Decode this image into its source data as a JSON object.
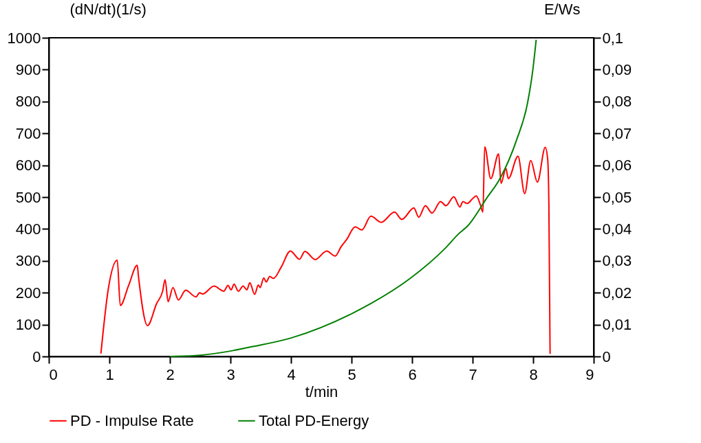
{
  "chart_data": {
    "type": "line",
    "xlabel": "t/min",
    "ylabel": "(dN/dt)(1/s)",
    "y2label": "E/Ws",
    "xlim": [
      0,
      9
    ],
    "xticks": [
      0,
      1,
      2,
      3,
      4,
      5,
      6,
      7,
      8,
      9
    ],
    "ylim": [
      0,
      1000
    ],
    "yticks": [
      0,
      100,
      200,
      300,
      400,
      500,
      600,
      700,
      800,
      900,
      1000
    ],
    "y2lim": [
      0,
      0.1
    ],
    "y2ticks": [
      {
        "value": 0,
        "label": "0"
      },
      {
        "value": 0.01,
        "label": "0,01"
      },
      {
        "value": 0.02,
        "label": "0,02"
      },
      {
        "value": 0.03,
        "label": "0,03"
      },
      {
        "value": 0.04,
        "label": "0,04"
      },
      {
        "value": 0.05,
        "label": "0,05"
      },
      {
        "value": 0.06,
        "label": "0,06"
      },
      {
        "value": 0.07,
        "label": "0,07"
      },
      {
        "value": 0.08,
        "label": "0,08"
      },
      {
        "value": 0.09,
        "label": "0,09"
      },
      {
        "value": 0.1,
        "label": "0,1"
      }
    ],
    "grid": false,
    "legend": "bottom",
    "marker": "none",
    "line_style": "solid",
    "series": [
      {
        "name": "PD - Impulse Rate",
        "color": "#ff0000",
        "x": [
          0.86,
          0.98,
          1.13,
          1.18,
          1.32,
          1.46,
          1.48,
          1.63,
          1.78,
          1.88,
          1.92,
          1.97,
          2.05,
          2.14,
          2.26,
          2.43,
          2.49,
          2.54,
          2.73,
          2.89,
          2.96,
          3.01,
          3.06,
          3.13,
          3.21,
          3.27,
          3.32,
          3.4,
          3.46,
          3.49,
          3.55,
          3.59,
          3.65,
          3.71,
          3.84,
          3.99,
          4.14,
          4.23,
          4.4,
          4.59,
          4.73,
          4.83,
          4.92,
          5.06,
          5.17,
          5.32,
          5.49,
          5.71,
          5.83,
          6.03,
          6.11,
          6.22,
          6.33,
          6.47,
          6.56,
          6.69,
          6.79,
          6.84,
          6.91,
          7.0,
          7.06,
          7.13,
          7.17,
          7.2,
          7.3,
          7.43,
          7.47,
          7.55,
          7.59,
          7.75,
          7.86,
          7.96,
          8.07,
          8.2,
          8.24,
          8.26,
          8.28
        ],
        "values": [
          9,
          209,
          302,
          160,
          224,
          286,
          252,
          97,
          166,
          205,
          241,
          172,
          216,
          177,
          208,
          187,
          200,
          196,
          221,
          205,
          223,
          209,
          227,
          205,
          221,
          209,
          231,
          195,
          224,
          216,
          246,
          234,
          251,
          245,
          281,
          331,
          305,
          330,
          304,
          331,
          315,
          345,
          367,
          407,
          397,
          440,
          421,
          453,
          430,
          466,
          437,
          473,
          450,
          486,
          473,
          501,
          469,
          486,
          480,
          495,
          504,
          475,
          453,
          658,
          558,
          636,
          543,
          590,
          558,
          628,
          511,
          615,
          547,
          656,
          619,
          475,
          8
        ]
      },
      {
        "name": "Total PD-Energy",
        "color": "#008000",
        "axis": "y2",
        "x": [
          2.0,
          2.5,
          3.0,
          3.34,
          4.0,
          5.0,
          5.32,
          5.97,
          6.54,
          6.77,
          6.92,
          7.23,
          7.46,
          7.72,
          7.91,
          7.99,
          8.05
        ],
        "values": [
          0,
          0.0004,
          0.0017,
          0.003,
          0.0058,
          0.0134,
          0.0166,
          0.0245,
          0.0338,
          0.0385,
          0.041,
          0.0496,
          0.0561,
          0.0676,
          0.0798,
          0.0892,
          0.0994
        ]
      }
    ]
  }
}
